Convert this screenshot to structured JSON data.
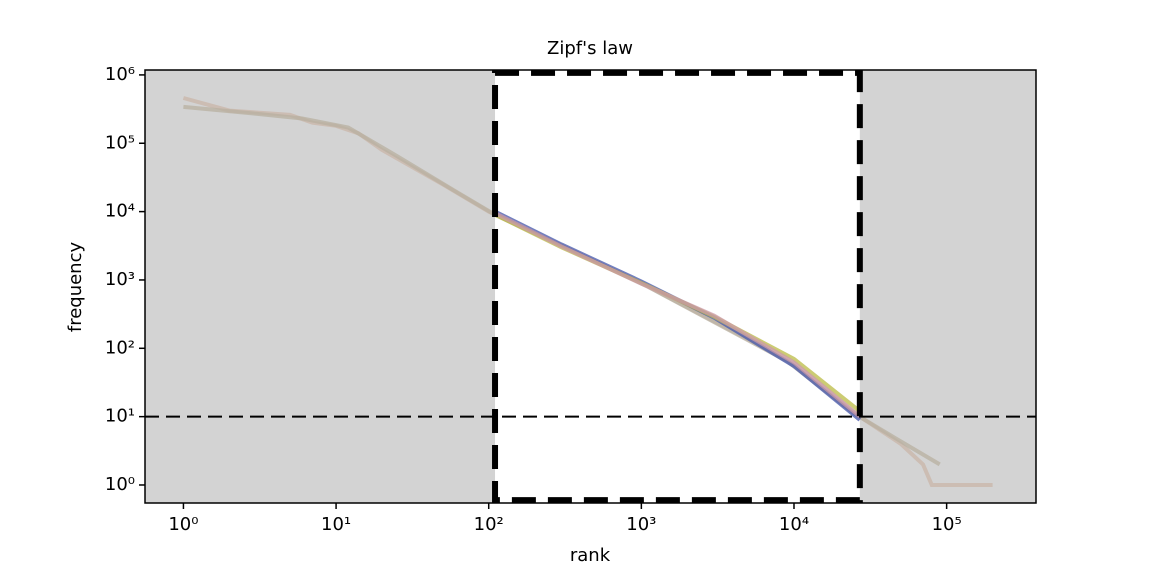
{
  "chart_data": {
    "type": "line",
    "title": "Zipf's law",
    "x_label": "rank",
    "y_label": "frequency",
    "x_scale": "log",
    "y_scale": "log",
    "xlim": [
      0.56,
      385000
    ],
    "ylim": [
      0.545,
      1180000
    ],
    "xticks": [
      {
        "value": 1,
        "label": "10⁰"
      },
      {
        "value": 10,
        "label": "10¹"
      },
      {
        "value": 100,
        "label": "10²"
      },
      {
        "value": 1000,
        "label": "10³"
      },
      {
        "value": 10000,
        "label": "10⁴"
      },
      {
        "value": 100000,
        "label": "10⁵"
      }
    ],
    "yticks": [
      {
        "value": 1,
        "label": "10⁰"
      },
      {
        "value": 10,
        "label": "10¹"
      },
      {
        "value": 100,
        "label": "10²"
      },
      {
        "value": 1000,
        "label": "10³"
      },
      {
        "value": 10000,
        "label": "10⁴"
      },
      {
        "value": 100000,
        "label": "10⁵"
      },
      {
        "value": 1000000,
        "label": "10⁶"
      }
    ],
    "shade_color": "#d3d3d3",
    "box": {
      "x": [
        110,
        27000
      ],
      "y": [
        0.6,
        1070000
      ]
    },
    "hline": 10,
    "series": [
      {
        "color": "#c9b5a8",
        "x": [
          1,
          2,
          5,
          7,
          10,
          14,
          20,
          50,
          100,
          1000,
          10000,
          27000,
          50000,
          70000,
          80000,
          200000
        ],
        "values": [
          460000,
          300000,
          260000,
          200000,
          180000,
          140000,
          80000,
          25000,
          10000,
          900,
          60,
          10,
          4,
          2,
          1,
          1
        ]
      },
      {
        "color": "#b8b0a0",
        "x": [
          1,
          3,
          6,
          12,
          25,
          60,
          110,
          1100,
          9000,
          25000,
          45000,
          90000
        ],
        "values": [
          340000,
          270000,
          230000,
          170000,
          65000,
          20000,
          9000,
          800,
          65,
          11,
          5,
          2
        ]
      },
      {
        "color": "#4455aa",
        "x": [
          110,
          300,
          1000,
          3000,
          10000,
          27000
        ],
        "values": [
          10000,
          3300,
          950,
          280,
          55,
          9
        ]
      },
      {
        "color": "#bbbb44",
        "x": [
          110,
          300,
          1000,
          3000,
          10000,
          27000
        ],
        "values": [
          9000,
          3000,
          900,
          290,
          70,
          12
        ]
      },
      {
        "color": "#cc99aa",
        "x": [
          110,
          300,
          1000,
          3000,
          10000,
          27000
        ],
        "values": [
          9500,
          3100,
          880,
          300,
          62,
          10
        ]
      }
    ]
  }
}
